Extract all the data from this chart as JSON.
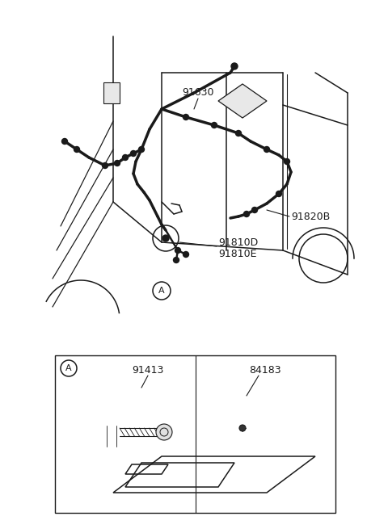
{
  "bg_color": "#ffffff",
  "line_color": "#1a1a1a",
  "text_color": "#1a1a1a",
  "label_91630": "91630",
  "label_91820B": "91820B",
  "label_91810D": "91810D",
  "label_91810E": "91810E",
  "label_91413": "91413",
  "label_84183": "84183",
  "label_A": "A",
  "fig_width": 4.8,
  "fig_height": 6.55,
  "dpi": 100
}
